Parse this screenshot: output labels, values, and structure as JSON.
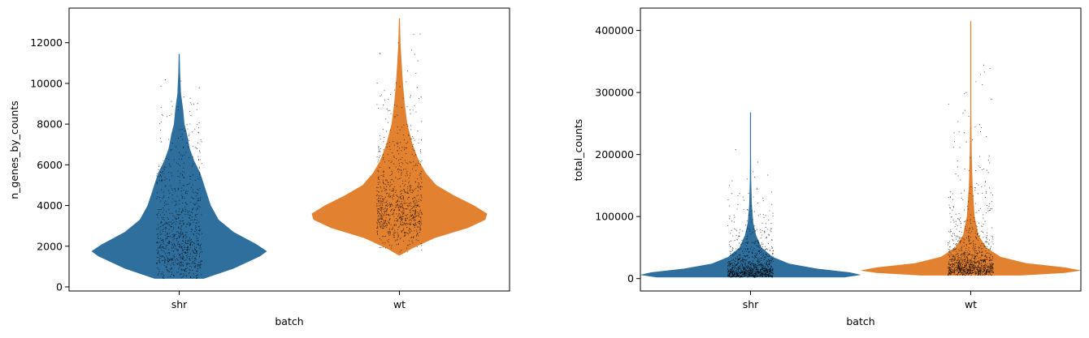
{
  "colors": {
    "shr": "#2e6f9e",
    "wt": "#e2812f",
    "dots": "#000000"
  },
  "chart_data": [
    {
      "type": "violin",
      "xlabel": "batch",
      "ylabel": "n_genes_by_counts",
      "categories": [
        "shr",
        "wt"
      ],
      "ylim": [
        -200,
        13700
      ],
      "yticks": [
        0,
        2000,
        4000,
        6000,
        8000,
        10000,
        12000
      ],
      "ytick_labels": [
        "0",
        "2000",
        "4000",
        "6000",
        "8000",
        "10000",
        "12000"
      ],
      "series": [
        {
          "category": "shr",
          "min": 400,
          "max": 11450,
          "median": 2600,
          "density": [
            [
              400,
              0.28
            ],
            [
              900,
              0.62
            ],
            [
              1500,
              0.92
            ],
            [
              1750,
              1.0
            ],
            [
              2100,
              0.88
            ],
            [
              2700,
              0.62
            ],
            [
              3300,
              0.45
            ],
            [
              4000,
              0.36
            ],
            [
              4800,
              0.3
            ],
            [
              5600,
              0.24
            ],
            [
              6200,
              0.17
            ],
            [
              6800,
              0.12
            ],
            [
              7500,
              0.09
            ],
            [
              8000,
              0.06
            ],
            [
              8700,
              0.045
            ],
            [
              9500,
              0.02
            ],
            [
              10500,
              0.01
            ],
            [
              11450,
              0.0
            ]
          ]
        },
        {
          "category": "wt",
          "min": 1550,
          "max": 13200,
          "median": 4300,
          "density": [
            [
              1550,
              0.0
            ],
            [
              1900,
              0.15
            ],
            [
              2400,
              0.4
            ],
            [
              2900,
              0.78
            ],
            [
              3300,
              0.98
            ],
            [
              3600,
              1.0
            ],
            [
              4000,
              0.85
            ],
            [
              4500,
              0.62
            ],
            [
              5000,
              0.42
            ],
            [
              5600,
              0.3
            ],
            [
              6200,
              0.22
            ],
            [
              7000,
              0.15
            ],
            [
              8000,
              0.09
            ],
            [
              9000,
              0.06
            ],
            [
              10000,
              0.04
            ],
            [
              11000,
              0.025
            ],
            [
              12000,
              0.012
            ],
            [
              13200,
              0.0
            ]
          ]
        }
      ],
      "grid": false
    },
    {
      "type": "violin",
      "xlabel": "batch",
      "ylabel": "total_counts",
      "categories": [
        "shr",
        "wt"
      ],
      "ylim": [
        -20000,
        436000
      ],
      "yticks": [
        0,
        100000,
        200000,
        300000,
        400000
      ],
      "ytick_labels": [
        "0",
        "100000",
        "200000",
        "300000",
        "400000"
      ],
      "series": [
        {
          "category": "shr",
          "min": 2000,
          "max": 268000,
          "median": 12000,
          "density": [
            [
              2000,
              0.85
            ],
            [
              6000,
              1.0
            ],
            [
              10000,
              0.9
            ],
            [
              16000,
              0.6
            ],
            [
              24000,
              0.35
            ],
            [
              35000,
              0.2
            ],
            [
              50000,
              0.1
            ],
            [
              70000,
              0.05
            ],
            [
              90000,
              0.025
            ],
            [
              120000,
              0.012
            ],
            [
              160000,
              0.006
            ],
            [
              200000,
              0.003
            ],
            [
              268000,
              0.0
            ]
          ]
        },
        {
          "category": "wt",
          "min": 5000,
          "max": 415000,
          "median": 18000,
          "density": [
            [
              5000,
              0.45
            ],
            [
              9000,
              0.85
            ],
            [
              13000,
              1.0
            ],
            [
              18000,
              0.85
            ],
            [
              25000,
              0.5
            ],
            [
              35000,
              0.27
            ],
            [
              50000,
              0.14
            ],
            [
              70000,
              0.07
            ],
            [
              100000,
              0.035
            ],
            [
              150000,
              0.017
            ],
            [
              200000,
              0.009
            ],
            [
              270000,
              0.004
            ],
            [
              340000,
              0.0015
            ],
            [
              415000,
              0.0
            ]
          ]
        }
      ],
      "grid": false
    }
  ]
}
